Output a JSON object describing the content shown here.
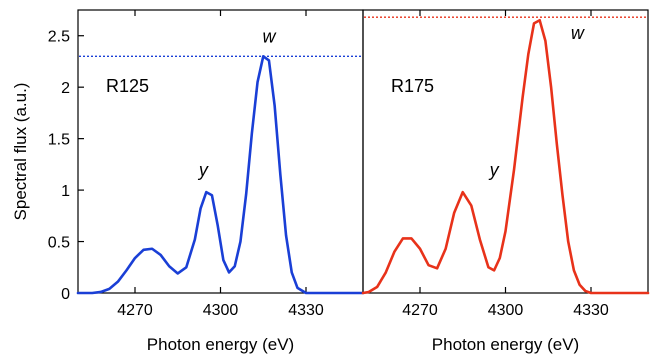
{
  "chart_data": [
    {
      "type": "line",
      "panel_label": "R125",
      "color": "#1a3fd6",
      "xlabel": "Photon energy (eV)",
      "ylabel": "Spectral flux (a.u.)",
      "xlim": [
        4250,
        4350
      ],
      "ylim": [
        0,
        2.75
      ],
      "xticks": [
        4270,
        4300,
        4330
      ],
      "yticks": [
        0,
        0.5,
        1,
        1.5,
        2,
        2.5
      ],
      "ytick_labels": [
        "0",
        "0.5",
        "1",
        "1.5",
        "2",
        "2.5"
      ],
      "reference_line": {
        "y": 2.3,
        "style": "dotted"
      },
      "peak_labels": [
        {
          "text": "y",
          "x": 4294,
          "y": 1.0
        },
        {
          "text": "w",
          "x": 4317,
          "y": 2.3
        }
      ],
      "series": [
        {
          "x": [
            4250,
            4255,
            4258,
            4261,
            4264,
            4267,
            4270,
            4273,
            4276,
            4279,
            4282,
            4285,
            4288,
            4291,
            4293,
            4295,
            4297,
            4299,
            4301,
            4303,
            4305,
            4307,
            4309,
            4311,
            4313,
            4315,
            4317,
            4319,
            4321,
            4323,
            4325,
            4327,
            4330,
            4335,
            4340,
            4350
          ],
          "y": [
            0,
            0,
            0.01,
            0.04,
            0.11,
            0.22,
            0.34,
            0.42,
            0.43,
            0.37,
            0.26,
            0.19,
            0.25,
            0.52,
            0.82,
            0.98,
            0.95,
            0.66,
            0.32,
            0.2,
            0.26,
            0.5,
            0.96,
            1.55,
            2.05,
            2.3,
            2.26,
            1.82,
            1.15,
            0.56,
            0.2,
            0.05,
            0.0,
            0,
            0,
            0
          ]
        }
      ]
    },
    {
      "type": "line",
      "panel_label": "R175",
      "color": "#e8321a",
      "xlabel": "Photon energy (eV)",
      "ylabel": "",
      "xlim": [
        4250,
        4350
      ],
      "ylim": [
        0,
        2.75
      ],
      "xticks": [
        4270,
        4300,
        4330
      ],
      "reference_line": {
        "y": 2.68,
        "style": "dotted"
      },
      "peak_labels": [
        {
          "text": "y",
          "x": 4296,
          "y": 1.0
        },
        {
          "text": "w",
          "x": 4321,
          "y": 2.68
        }
      ],
      "series": [
        {
          "x": [
            4250,
            4252,
            4255,
            4258,
            4261,
            4264,
            4267,
            4270,
            4273,
            4276,
            4279,
            4282,
            4285,
            4288,
            4291,
            4294,
            4296,
            4298,
            4300,
            4303,
            4306,
            4308,
            4310,
            4312,
            4314,
            4316,
            4318,
            4320,
            4322,
            4324,
            4326,
            4328,
            4330,
            4333,
            4336,
            4340,
            4350
          ],
          "y": [
            0,
            0.01,
            0.06,
            0.2,
            0.4,
            0.53,
            0.53,
            0.43,
            0.27,
            0.24,
            0.43,
            0.78,
            0.98,
            0.85,
            0.52,
            0.25,
            0.22,
            0.34,
            0.6,
            1.2,
            1.9,
            2.32,
            2.62,
            2.65,
            2.45,
            2.0,
            1.45,
            0.95,
            0.5,
            0.22,
            0.08,
            0.02,
            0.0,
            0,
            0,
            0,
            0
          ]
        }
      ]
    }
  ]
}
